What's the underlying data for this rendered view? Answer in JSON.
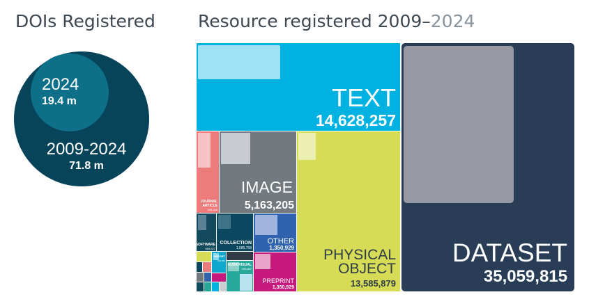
{
  "left_title": "DOIs Registered",
  "right_title_main": "Resource registered 2009–",
  "right_title_year": "2024",
  "chart_data": [
    {
      "type": "bubble",
      "title": "DOIs Registered",
      "items": [
        {
          "label": "2009-2024",
          "value_text": "71.8 m",
          "value": 71.8,
          "unit": "m"
        },
        {
          "label": "2024",
          "value_text": "19.4 m",
          "value": 19.4,
          "unit": "m"
        }
      ]
    },
    {
      "type": "treemap",
      "title": "Resource registered 2009–2024",
      "items": [
        {
          "label": "DATASET",
          "value_text": "35,059,815",
          "value": 35059815
        },
        {
          "label": "TEXT",
          "value_text": "14,628,257",
          "value": 14628257
        },
        {
          "label": "PHYSICAL",
          "label2": "OBJECT",
          "value_text": "13,585,879",
          "value": 13585879
        },
        {
          "label": "IMAGE",
          "value_text": "5,163,205",
          "value": 5163205
        },
        {
          "label": "OTHER",
          "value_text": "1,350,929",
          "value": 1350929
        },
        {
          "label": "PREPRINT",
          "value_text": "1,350,929",
          "value": 1350929
        },
        {
          "label": "COLLECTION",
          "value_text": "1,085,758",
          "value": 1085758
        },
        {
          "label": "JOURNAL",
          "label2": "ARTICLE",
          "value_text": "945,166"
        },
        {
          "label": "SOFTWARE",
          "value_text": "869,627"
        },
        {
          "label": "AUDIOVISUAL",
          "value_text": "450,887"
        },
        {
          "label": "REPORT",
          "value_text": "240,000"
        }
      ]
    }
  ],
  "colors": {
    "big_circle": "#07445a",
    "small_circle": "#0e6f89",
    "text": "#00b2e2",
    "dataset": "#293d57",
    "physical_object": "#d6dc56",
    "image": "#737a7f",
    "journal_article": "#ee7b7c",
    "software": "#12495d",
    "collection": "#0b4860",
    "other": "#2f63ad",
    "preprint": "#c5197d",
    "audiovisual": "#27a89b",
    "report": "#12a7cf"
  }
}
